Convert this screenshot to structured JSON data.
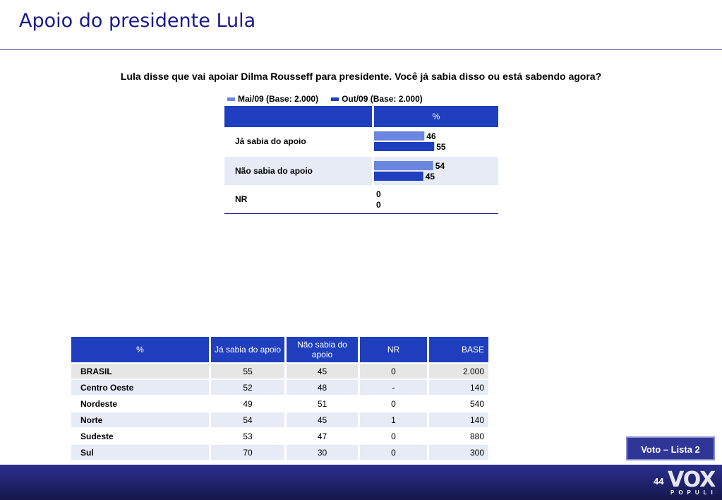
{
  "title": "Apoio do presidente Lula",
  "question": "Lula disse que vai apoiar Dilma Rousseff para presidente. Você já sabia disso ou está sabendo agora?",
  "chart_data": {
    "type": "bar",
    "orientation": "horizontal",
    "header": "%",
    "categories": [
      "Já sabia do apoio",
      "Não sabia do apoio",
      "NR"
    ],
    "series": [
      {
        "name": "Mai/09 (Base: 2.000)",
        "values": [
          46,
          54,
          0
        ],
        "color": "#6b86e0"
      },
      {
        "name": "Out/09 (Base: 2.000)",
        "values": [
          55,
          45,
          0
        ],
        "color": "#1f3fbf"
      }
    ],
    "xlim": [
      0,
      100
    ],
    "legend": "top"
  },
  "table": {
    "headers": [
      "%",
      "Já sabia do apoio",
      "Não sabia do apoio",
      "NR",
      "BASE"
    ],
    "rows": [
      [
        "BRASIL",
        "55",
        "45",
        "0",
        "2.000"
      ],
      [
        "Centro Oeste",
        "52",
        "48",
        "-",
        "140"
      ],
      [
        "Nordeste",
        "49",
        "51",
        "0",
        "540"
      ],
      [
        "Norte",
        "54",
        "45",
        "1",
        "140"
      ],
      [
        "Sudeste",
        "53",
        "47",
        "0",
        "880"
      ],
      [
        "Sul",
        "70",
        "30",
        "0",
        "300"
      ]
    ]
  },
  "button": {
    "label": "Voto – Lista 2"
  },
  "footer": {
    "page": "44",
    "logo_main": "VOX",
    "logo_sub": "POPULI"
  }
}
